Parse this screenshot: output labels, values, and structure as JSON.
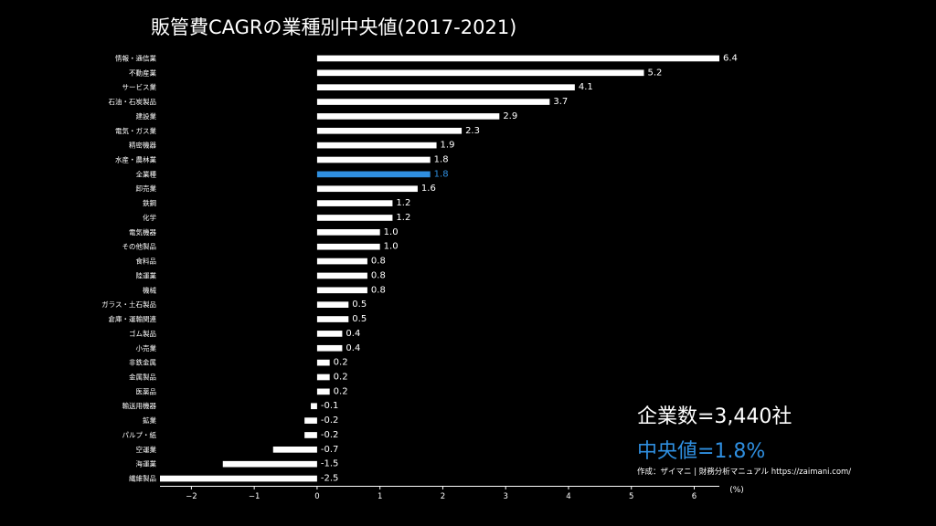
{
  "title": "販管費CAGRの業種別中央値(2017-2021)",
  "annotations": {
    "company_count": "企業数=3,440社",
    "median": "中央値=1.8%",
    "source": "作成：ザイマニ | 財務分析マニュアル https://zaimani.com/"
  },
  "colors": {
    "background": "#000000",
    "bar": "#ffffff",
    "highlight": "#2f8fe0",
    "text": "#ffffff"
  },
  "chart_data": {
    "type": "bar",
    "orientation": "horizontal",
    "title": "販管費CAGRの業種別中央値(2017-2021)",
    "xlabel": "",
    "x_unit_label": "(%)",
    "xlim": [
      -2.5,
      6.4
    ],
    "xticks": [
      -2,
      -1,
      0,
      1,
      2,
      3,
      4,
      5,
      6
    ],
    "xtick_labels": [
      "−2",
      "−1",
      "0",
      "1",
      "2",
      "3",
      "4",
      "5",
      "6"
    ],
    "highlight_category": "全業種",
    "categories": [
      "情報・通信業",
      "不動産業",
      "サービス業",
      "石油・石炭製品",
      "建設業",
      "電気・ガス業",
      "精密機器",
      "水産・農林業",
      "全業種",
      "卸売業",
      "鉄鋼",
      "化学",
      "電気機器",
      "その他製品",
      "食料品",
      "陸運業",
      "機械",
      "ガラス・土石製品",
      "倉庫・運輸関連",
      "ゴム製品",
      "小売業",
      "非鉄金属",
      "金属製品",
      "医薬品",
      "輸送用機器",
      "鉱業",
      "パルプ・紙",
      "空運業",
      "海運業",
      "繊維製品"
    ],
    "values": [
      6.4,
      5.2,
      4.1,
      3.7,
      2.9,
      2.3,
      1.9,
      1.8,
      1.8,
      1.6,
      1.2,
      1.2,
      1.0,
      1.0,
      0.8,
      0.8,
      0.8,
      0.5,
      0.5,
      0.4,
      0.4,
      0.2,
      0.2,
      0.2,
      -0.1,
      -0.2,
      -0.2,
      -0.7,
      -1.5,
      -2.5
    ],
    "value_labels": [
      "6.4",
      "5.2",
      "4.1",
      "3.7",
      "2.9",
      "2.3",
      "1.9",
      "1.8",
      "1.8",
      "1.6",
      "1.2",
      "1.2",
      "1.0",
      "1.0",
      "0.8",
      "0.8",
      "0.8",
      "0.5",
      "0.5",
      "0.4",
      "0.4",
      "0.2",
      "0.2",
      "0.2",
      "-0.1",
      "-0.2",
      "-0.2",
      "-0.7",
      "-1.5",
      "-2.5"
    ]
  }
}
